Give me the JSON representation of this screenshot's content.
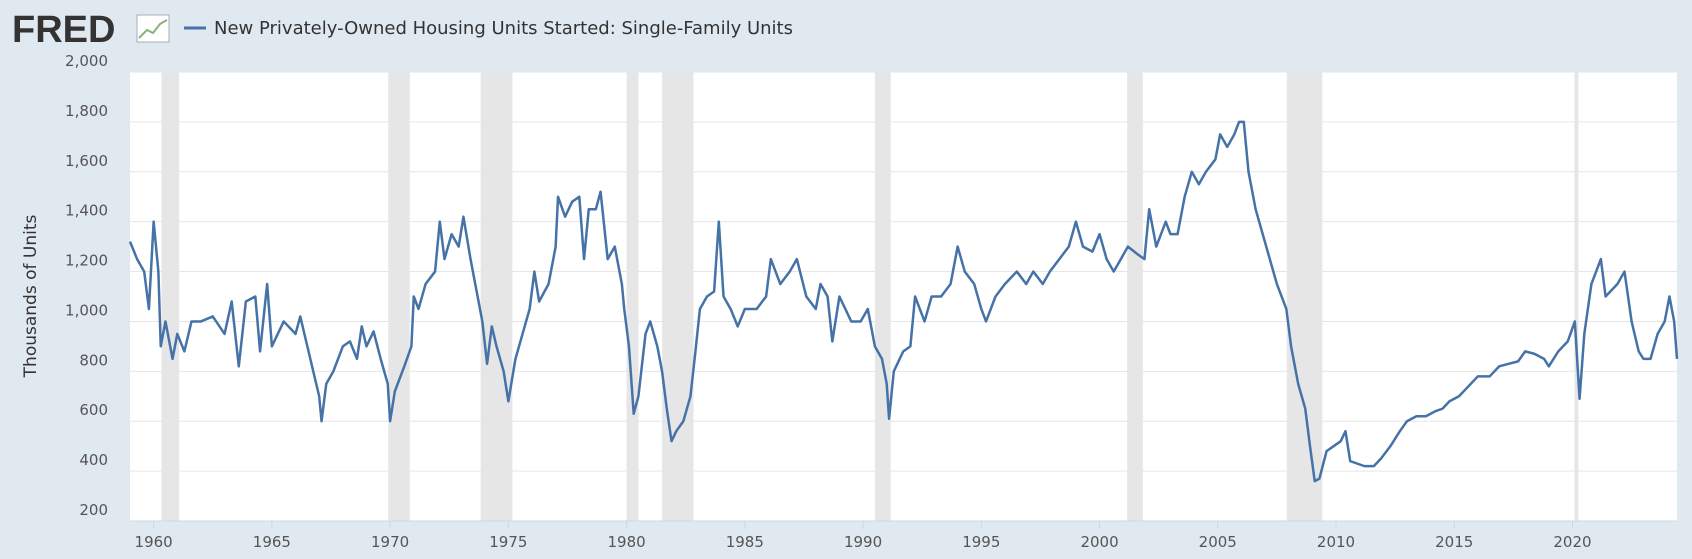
{
  "brand": "FRED",
  "chart_data": {
    "type": "line",
    "title": "New Privately-Owned Housing Units Started: Single-Family Units",
    "y_label": "Thousands of Units",
    "xlim": [
      1959,
      2024.42
    ],
    "xticks": [
      1960,
      1965,
      1970,
      1975,
      1980,
      1985,
      1990,
      1995,
      2000,
      2005,
      2010,
      2015,
      2020
    ],
    "ylim": [
      200,
      2000
    ],
    "yticks": [
      {
        "value": 200,
        "label": "200"
      },
      {
        "value": 400,
        "label": "400"
      },
      {
        "value": 600,
        "label": "600"
      },
      {
        "value": 800,
        "label": "800"
      },
      {
        "value": 1000,
        "label": "1,000"
      },
      {
        "value": 1200,
        "label": "1,200"
      },
      {
        "value": 1400,
        "label": "1,400"
      },
      {
        "value": 1600,
        "label": "1,600"
      },
      {
        "value": 1800,
        "label": "1,800"
      },
      {
        "value": 2000,
        "label": "2,000"
      }
    ],
    "grid": true,
    "recessions": [
      [
        1960.33,
        1961.08
      ],
      [
        1969.92,
        1970.83
      ],
      [
        1973.83,
        1975.17
      ],
      [
        1980.0,
        1980.5
      ],
      [
        1981.5,
        1982.83
      ],
      [
        1990.5,
        1991.17
      ],
      [
        2001.17,
        2001.83
      ],
      [
        2007.92,
        2009.42
      ],
      [
        2020.08,
        2020.25
      ]
    ],
    "recession_color": "#e6e6e6",
    "x": [
      1959.0,
      1959.3,
      1959.6,
      1959.8,
      1960.0,
      1960.2,
      1960.3,
      1960.5,
      1960.8,
      1961.0,
      1961.3,
      1961.6,
      1962.0,
      1962.5,
      1963.0,
      1963.3,
      1963.6,
      1963.9,
      1964.3,
      1964.5,
      1964.8,
      1965.0,
      1965.5,
      1966.0,
      1966.2,
      1966.5,
      1967.0,
      1967.1,
      1967.3,
      1967.6,
      1968.0,
      1968.3,
      1968.6,
      1968.8,
      1969.0,
      1969.3,
      1969.6,
      1969.9,
      1970.0,
      1970.2,
      1970.6,
      1970.9,
      1971.0,
      1971.2,
      1971.5,
      1971.9,
      1972.1,
      1972.3,
      1972.6,
      1972.9,
      1973.1,
      1973.4,
      1973.7,
      1973.9,
      1974.1,
      1974.3,
      1974.5,
      1974.8,
      1975.0,
      1975.3,
      1975.6,
      1975.9,
      1976.1,
      1976.3,
      1976.7,
      1977.0,
      1977.1,
      1977.4,
      1977.7,
      1978.0,
      1978.2,
      1978.4,
      1978.7,
      1978.9,
      1979.2,
      1979.5,
      1979.8,
      1979.9,
      1980.1,
      1980.3,
      1980.5,
      1980.8,
      1981.0,
      1981.3,
      1981.5,
      1981.7,
      1981.9,
      1982.1,
      1982.4,
      1982.7,
      1982.9,
      1983.1,
      1983.4,
      1983.7,
      1983.9,
      1984.1,
      1984.4,
      1984.7,
      1985.0,
      1985.5,
      1985.9,
      1986.1,
      1986.5,
      1986.9,
      1987.2,
      1987.6,
      1988.0,
      1988.2,
      1988.5,
      1988.7,
      1989.0,
      1989.5,
      1989.9,
      1990.2,
      1990.5,
      1990.8,
      1991.0,
      1991.1,
      1991.3,
      1991.7,
      1992.0,
      1992.2,
      1992.6,
      1992.9,
      1993.3,
      1993.7,
      1994.0,
      1994.3,
      1994.7,
      1995.0,
      1995.2,
      1995.6,
      1996.0,
      1996.5,
      1996.9,
      1997.2,
      1997.6,
      1997.9,
      1998.3,
      1998.7,
      1999.0,
      1999.3,
      1999.7,
      2000.0,
      2000.3,
      2000.6,
      2000.9,
      2001.2,
      2001.6,
      2001.9,
      2002.1,
      2002.4,
      2002.8,
      2003.0,
      2003.3,
      2003.6,
      2003.9,
      2004.2,
      2004.5,
      2004.9,
      2005.1,
      2005.4,
      2005.7,
      2005.9,
      2006.1,
      2006.3,
      2006.6,
      2006.9,
      2007.2,
      2007.5,
      2007.9,
      2008.1,
      2008.4,
      2008.7,
      2008.9,
      2009.1,
      2009.3,
      2009.6,
      2009.9,
      2010.2,
      2010.4,
      2010.6,
      2010.9,
      2011.2,
      2011.6,
      2011.9,
      2012.3,
      2012.7,
      2013.0,
      2013.4,
      2013.8,
      2014.2,
      2014.5,
      2014.8,
      2015.2,
      2015.6,
      2016.0,
      2016.5,
      2016.9,
      2017.3,
      2017.7,
      2018.0,
      2018.4,
      2018.8,
      2019.0,
      2019.4,
      2019.8,
      2020.1,
      2020.3,
      2020.5,
      2020.8,
      2021.0,
      2021.2,
      2021.4,
      2021.7,
      2021.9,
      2022.2,
      2022.5,
      2022.8,
      2023.0,
      2023.3,
      2023.6,
      2023.9,
      2024.1,
      2024.3,
      2024.42
    ],
    "series": [
      {
        "name": "New Privately-Owned Housing Units Started: Single-Family Units",
        "color": "#4572a7",
        "values": [
          1320,
          1250,
          1200,
          1050,
          1400,
          1200,
          900,
          1000,
          850,
          950,
          880,
          1000,
          1000,
          1020,
          950,
          1080,
          820,
          1080,
          1100,
          880,
          1150,
          900,
          1000,
          950,
          1020,
          900,
          700,
          600,
          750,
          800,
          900,
          920,
          850,
          980,
          900,
          960,
          850,
          750,
          600,
          720,
          820,
          900,
          1100,
          1050,
          1150,
          1200,
          1400,
          1250,
          1350,
          1300,
          1420,
          1250,
          1100,
          1000,
          830,
          980,
          900,
          800,
          680,
          850,
          950,
          1050,
          1200,
          1080,
          1150,
          1300,
          1500,
          1420,
          1480,
          1500,
          1250,
          1450,
          1450,
          1520,
          1250,
          1300,
          1150,
          1050,
          900,
          630,
          700,
          950,
          1000,
          900,
          800,
          650,
          520,
          560,
          600,
          700,
          870,
          1050,
          1100,
          1120,
          1400,
          1100,
          1050,
          980,
          1050,
          1050,
          1100,
          1250,
          1150,
          1200,
          1250,
          1100,
          1050,
          1150,
          1100,
          920,
          1100,
          1000,
          1000,
          1050,
          900,
          850,
          750,
          610,
          800,
          880,
          900,
          1100,
          1000,
          1100,
          1100,
          1150,
          1300,
          1200,
          1150,
          1050,
          1000,
          1100,
          1150,
          1200,
          1150,
          1200,
          1150,
          1200,
          1250,
          1300,
          1400,
          1300,
          1280,
          1350,
          1250,
          1200,
          1250,
          1300,
          1270,
          1250,
          1450,
          1300,
          1400,
          1350,
          1350,
          1500,
          1600,
          1550,
          1600,
          1650,
          1750,
          1700,
          1750,
          1800,
          1800,
          1600,
          1450,
          1350,
          1250,
          1150,
          1050,
          900,
          750,
          650,
          500,
          360,
          370,
          480,
          500,
          520,
          560,
          440,
          430,
          420,
          420,
          450,
          500,
          560,
          600,
          620,
          620,
          640,
          650,
          680,
          700,
          740,
          780,
          780,
          820,
          830,
          840,
          880,
          870,
          850,
          820,
          880,
          920,
          1000,
          690,
          950,
          1150,
          1200,
          1250,
          1100,
          1130,
          1150,
          1200,
          1000,
          880,
          850,
          850,
          950,
          1000,
          1100,
          1000,
          850
        ]
      }
    ]
  }
}
